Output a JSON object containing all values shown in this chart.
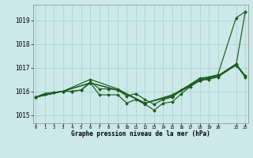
{
  "xlabel": "Graphe pression niveau de la mer (hPa)",
  "background_color": "#cce8e8",
  "grid_color": "#aad4d4",
  "line_color": "#1a5c1a",
  "xlim": [
    -0.3,
    23.3
  ],
  "ylim": [
    1014.65,
    1019.65
  ],
  "yticks": [
    1015,
    1016,
    1017,
    1018,
    1019
  ],
  "ytick_labels": [
    "1015",
    "1016",
    "1017",
    "1018",
    "1019"
  ],
  "xtick_positions": [
    0,
    1,
    2,
    3,
    4,
    5,
    6,
    7,
    8,
    9,
    10,
    11,
    12,
    13,
    14,
    15,
    16,
    17,
    18,
    19,
    20,
    22,
    23
  ],
  "xtick_labels": [
    "0",
    "1",
    "2",
    "3",
    "4",
    "5",
    "6",
    "7",
    "8",
    "9",
    "10",
    "11",
    "12",
    "13",
    "14",
    "15",
    "16",
    "17",
    "18",
    "19",
    "20",
    "22",
    "23"
  ],
  "series": [
    {
      "x": [
        0,
        1,
        2,
        3,
        4,
        5,
        6,
        7,
        8,
        9,
        10,
        11,
        12,
        13,
        14,
        15,
        16,
        17,
        18,
        19,
        20,
        22,
        23
      ],
      "y": [
        1015.75,
        1015.9,
        1015.95,
        1016.0,
        1016.0,
        1016.05,
        1016.35,
        1015.85,
        1015.85,
        1015.85,
        1015.5,
        1015.65,
        1015.45,
        1015.2,
        1015.5,
        1015.55,
        1015.9,
        1016.2,
        1016.45,
        1016.5,
        1016.6,
        1017.1,
        1016.6
      ]
    },
    {
      "x": [
        0,
        1,
        2,
        3,
        4,
        5,
        6,
        7,
        8,
        9,
        10,
        11,
        12,
        13,
        14,
        15,
        16,
        17,
        18,
        19,
        20,
        22,
        23
      ],
      "y": [
        1015.75,
        1015.9,
        1015.95,
        1016.0,
        1016.0,
        1016.05,
        1016.4,
        1016.1,
        1016.1,
        1016.05,
        1015.8,
        1015.9,
        1015.65,
        1015.45,
        1015.65,
        1015.75,
        1016.05,
        1016.3,
        1016.55,
        1016.6,
        1016.65,
        1017.15,
        1016.65
      ]
    },
    {
      "x": [
        0,
        3,
        6,
        9,
        12,
        15,
        18,
        20,
        22,
        23
      ],
      "y": [
        1015.75,
        1016.0,
        1016.5,
        1016.1,
        1015.5,
        1015.85,
        1016.5,
        1016.7,
        1019.1,
        1019.35
      ]
    },
    {
      "x": [
        0,
        3,
        6,
        9,
        12,
        15,
        18,
        20,
        22,
        23
      ],
      "y": [
        1015.75,
        1016.0,
        1016.35,
        1016.05,
        1015.5,
        1015.8,
        1016.45,
        1016.65,
        1017.1,
        1019.35
      ]
    },
    {
      "x": [
        0,
        3,
        6,
        9,
        12,
        15,
        18,
        20,
        22,
        23
      ],
      "y": [
        1015.75,
        1016.0,
        1016.35,
        1016.05,
        1015.5,
        1015.8,
        1016.45,
        1016.65,
        1017.15,
        1016.65
      ]
    }
  ]
}
